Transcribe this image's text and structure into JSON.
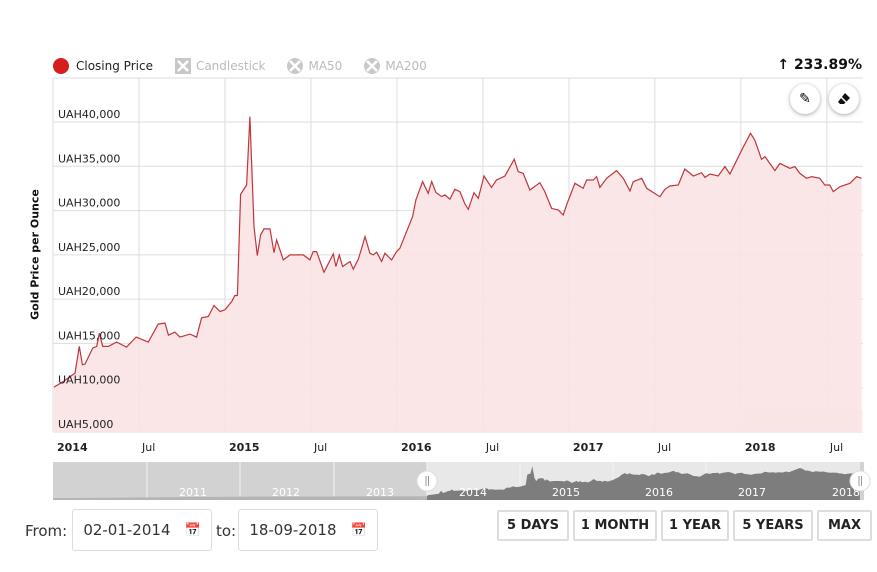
{
  "legend": {
    "items": [
      {
        "label": "Closing Price",
        "active": true
      },
      {
        "label": "Candlestick",
        "active": false
      },
      {
        "label": "MA50",
        "active": false
      },
      {
        "label": "MA200",
        "active": false
      }
    ]
  },
  "change": {
    "arrow": "↑",
    "value": "233.89%"
  },
  "tools": {
    "draw_icon": "pencil-icon",
    "erase_icon": "eraser-icon"
  },
  "colors": {
    "line": "#c0363c",
    "fill": "#fae3e3",
    "accent": "#d71e1e"
  },
  "chart_data": {
    "type": "area",
    "title": "",
    "ylabel": "Gold Price per Ounce",
    "xlabel": "",
    "x_unit": "decimal year",
    "xlim": [
      2014.0,
      2018.71
    ],
    "ylim": [
      5000,
      40000
    ],
    "y_ticks": [
      "UAH5,000",
      "UAH10,000",
      "UAH15,000",
      "UAH20,000",
      "UAH25,000",
      "UAH30,000",
      "UAH35,000",
      "UAH40,000"
    ],
    "y_tick_values": [
      5000,
      10000,
      15000,
      20000,
      25000,
      30000,
      35000,
      40000
    ],
    "x_ticks": [
      {
        "label": "2014",
        "x": 2014.0,
        "major": true
      },
      {
        "label": "Jul",
        "x": 2014.5,
        "major": false
      },
      {
        "label": "2015",
        "x": 2015.0,
        "major": true
      },
      {
        "label": "Jul",
        "x": 2015.5,
        "major": false
      },
      {
        "label": "2016",
        "x": 2016.0,
        "major": true
      },
      {
        "label": "Jul",
        "x": 2016.5,
        "major": false
      },
      {
        "label": "2017",
        "x": 2017.0,
        "major": true
      },
      {
        "label": "Jul",
        "x": 2017.5,
        "major": false
      },
      {
        "label": "2018",
        "x": 2018.0,
        "major": true
      },
      {
        "label": "Jul",
        "x": 2018.5,
        "major": false
      }
    ],
    "grid": true,
    "series": [
      {
        "name": "Closing Price",
        "points": [
          [
            2014.006,
            10070
          ],
          [
            2014.06,
            10700
          ],
          [
            2014.128,
            11650
          ],
          [
            2014.153,
            14660
          ],
          [
            2014.171,
            12600
          ],
          [
            2014.186,
            12670
          ],
          [
            2014.231,
            14470
          ],
          [
            2014.254,
            14660
          ],
          [
            2014.269,
            16160
          ],
          [
            2014.289,
            14660
          ],
          [
            2014.322,
            14660
          ],
          [
            2014.37,
            15150
          ],
          [
            2014.428,
            14580
          ],
          [
            2014.483,
            15710
          ],
          [
            2014.554,
            15150
          ],
          [
            2014.612,
            17180
          ],
          [
            2014.651,
            17290
          ],
          [
            2014.671,
            15940
          ],
          [
            2014.709,
            16280
          ],
          [
            2014.738,
            15710
          ],
          [
            2014.797,
            16050
          ],
          [
            2014.835,
            15710
          ],
          [
            2014.864,
            17890
          ],
          [
            2014.903,
            18040
          ],
          [
            2014.936,
            19280
          ],
          [
            2014.971,
            18610
          ],
          [
            2015.0,
            18800
          ],
          [
            2015.039,
            19730
          ],
          [
            2015.058,
            20410
          ],
          [
            2015.072,
            20410
          ],
          [
            2015.091,
            31840
          ],
          [
            2015.126,
            32890
          ],
          [
            2015.145,
            40600
          ],
          [
            2015.169,
            28190
          ],
          [
            2015.188,
            24920
          ],
          [
            2015.207,
            27250
          ],
          [
            2015.227,
            27930
          ],
          [
            2015.262,
            27930
          ],
          [
            2015.285,
            25260
          ],
          [
            2015.3,
            26690
          ],
          [
            2015.339,
            24430
          ],
          [
            2015.378,
            25000
          ],
          [
            2015.455,
            25000
          ],
          [
            2015.494,
            24430
          ],
          [
            2015.513,
            25370
          ],
          [
            2015.533,
            25370
          ],
          [
            2015.576,
            23040
          ],
          [
            2015.63,
            25110
          ],
          [
            2015.645,
            23680
          ],
          [
            2015.665,
            25000
          ],
          [
            2015.684,
            23680
          ],
          [
            2015.727,
            24250
          ],
          [
            2015.746,
            23380
          ],
          [
            2015.775,
            24510
          ],
          [
            2015.795,
            25750
          ],
          [
            2015.814,
            27060
          ],
          [
            2015.843,
            25190
          ],
          [
            2015.862,
            25000
          ],
          [
            2015.882,
            25300
          ],
          [
            2015.911,
            24250
          ],
          [
            2015.93,
            25190
          ],
          [
            2015.969,
            24430
          ],
          [
            2015.998,
            25370
          ],
          [
            2016.017,
            25750
          ],
          [
            2016.091,
            29320
          ],
          [
            2016.11,
            31200
          ],
          [
            2016.149,
            33270
          ],
          [
            2016.182,
            31950
          ],
          [
            2016.202,
            33270
          ],
          [
            2016.227,
            32030
          ],
          [
            2016.26,
            31580
          ],
          [
            2016.279,
            31770
          ],
          [
            2016.308,
            31280
          ],
          [
            2016.337,
            32400
          ],
          [
            2016.366,
            32140
          ],
          [
            2016.395,
            30750
          ],
          [
            2016.415,
            30140
          ],
          [
            2016.448,
            32020
          ],
          [
            2016.473,
            31380
          ],
          [
            2016.506,
            33900
          ],
          [
            2016.55,
            32620
          ],
          [
            2016.579,
            33450
          ],
          [
            2016.628,
            33900
          ],
          [
            2016.682,
            35790
          ],
          [
            2016.705,
            34390
          ],
          [
            2016.734,
            34200
          ],
          [
            2016.773,
            32320
          ],
          [
            2016.831,
            33150
          ],
          [
            2016.86,
            32140
          ],
          [
            2016.899,
            30250
          ],
          [
            2016.938,
            30070
          ],
          [
            2016.967,
            29500
          ],
          [
            2016.99,
            30820
          ],
          [
            2017.035,
            33080
          ],
          [
            2017.083,
            32510
          ],
          [
            2017.103,
            33450
          ],
          [
            2017.141,
            33450
          ],
          [
            2017.161,
            33830
          ],
          [
            2017.18,
            32620
          ],
          [
            2017.219,
            33640
          ],
          [
            2017.277,
            34510
          ],
          [
            2017.316,
            33640
          ],
          [
            2017.355,
            32210
          ],
          [
            2017.374,
            33260
          ],
          [
            2017.423,
            33640
          ],
          [
            2017.452,
            32510
          ],
          [
            2017.529,
            31570
          ],
          [
            2017.558,
            32400
          ],
          [
            2017.587,
            32770
          ],
          [
            2017.636,
            32890
          ],
          [
            2017.674,
            34690
          ],
          [
            2017.723,
            33900
          ],
          [
            2017.771,
            34280
          ],
          [
            2017.791,
            33750
          ],
          [
            2017.82,
            34130
          ],
          [
            2017.868,
            33900
          ],
          [
            2017.907,
            34960
          ],
          [
            2017.936,
            34130
          ],
          [
            2018.01,
            37030
          ],
          [
            2018.056,
            38720
          ],
          [
            2018.081,
            37970
          ],
          [
            2018.12,
            35790
          ],
          [
            2018.14,
            36090
          ],
          [
            2018.198,
            34510
          ],
          [
            2018.227,
            35330
          ],
          [
            2018.285,
            34770
          ],
          [
            2018.314,
            34960
          ],
          [
            2018.343,
            34200
          ],
          [
            2018.382,
            33640
          ],
          [
            2018.411,
            33830
          ],
          [
            2018.459,
            33640
          ],
          [
            2018.488,
            32890
          ],
          [
            2018.517,
            32890
          ],
          [
            2018.537,
            32140
          ],
          [
            2018.576,
            32700
          ],
          [
            2018.634,
            33080
          ],
          [
            2018.673,
            33830
          ],
          [
            2018.702,
            33640
          ]
        ]
      }
    ],
    "navigator": {
      "labels": [
        "2011",
        "2012",
        "2013",
        "2014",
        "2015",
        "2016",
        "2017",
        "2018"
      ],
      "selected_range": [
        "2014",
        "2018"
      ]
    }
  },
  "controls": {
    "from_label": "From:",
    "from_value": "02-01-2014",
    "to_label": "to:",
    "to_value": "18-09-2018",
    "calendar_icon": "📅",
    "ranges": [
      "5 DAYS",
      "1 MONTH",
      "1 YEAR",
      "5 YEARS",
      "MAX"
    ]
  }
}
